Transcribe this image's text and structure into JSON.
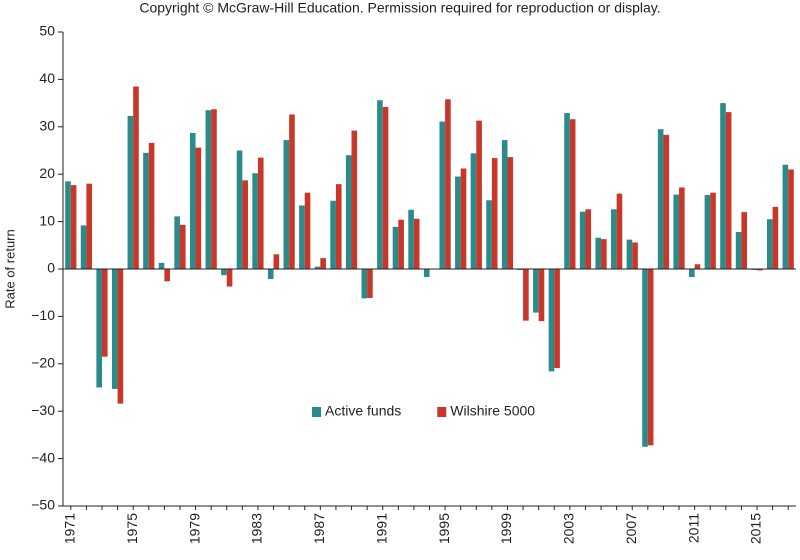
{
  "chart_data": {
    "type": "bar",
    "title": "Copyright © McGraw-Hill Education. Permission required for reproduction or display.",
    "ylabel": "Rate of return",
    "categories": [
      "1971",
      null,
      null,
      null,
      "1975",
      null,
      null,
      null,
      "1979",
      null,
      null,
      null,
      "1983",
      null,
      null,
      null,
      "1987",
      null,
      null,
      null,
      "1991",
      null,
      null,
      null,
      "1995",
      null,
      null,
      null,
      "1999",
      null,
      null,
      null,
      "2003",
      null,
      null,
      null,
      "2007",
      null,
      null,
      null,
      "2011",
      null,
      null,
      null,
      "2015",
      null,
      null
    ],
    "series": [
      {
        "name": "Active funds",
        "color": "#2b8b8a",
        "values": [
          18.5,
          9.2,
          -25,
          -25.3,
          32.3,
          24.5,
          1.3,
          11.1,
          28.7,
          33.5,
          -1.3,
          25,
          20.2,
          -2.1,
          27.2,
          13.4,
          0.5,
          14.4,
          24,
          -6.2,
          35.6,
          8.9,
          12.5,
          -1.7,
          31.1,
          19.5,
          24.4,
          14.5,
          27.2,
          -0.2,
          -9.2,
          -21.6,
          32.9,
          12.1,
          6.6,
          12.6,
          6.2,
          -37.5,
          29.5,
          15.7,
          -1.7,
          15.6,
          35,
          7.8,
          -0.2,
          10.5,
          22
        ]
      },
      {
        "name": "Wilshire 5000",
        "color": "#c8372a",
        "values": [
          17.7,
          18,
          -18.5,
          -28.4,
          38.5,
          26.6,
          -2.6,
          9.3,
          25.6,
          33.7,
          -3.7,
          18.7,
          23.5,
          3.1,
          32.6,
          16.1,
          2.3,
          17.9,
          29.2,
          -6.1,
          34.2,
          10.4,
          10.6,
          -0.1,
          35.8,
          21.2,
          31.3,
          23.4,
          23.6,
          -10.9,
          -11,
          -20.9,
          31.6,
          12.6,
          6.3,
          15.9,
          5.6,
          -37.2,
          28.3,
          17.2,
          1,
          16.1,
          33.1,
          12,
          -0.3,
          13.1,
          21
        ]
      }
    ],
    "ylim": [
      -50,
      50
    ],
    "yticks": [
      {
        "value": -50,
        "label": "−50"
      },
      {
        "value": -40,
        "label": "−40"
      },
      {
        "value": -30,
        "label": "−30"
      },
      {
        "value": -20,
        "label": "−20"
      },
      {
        "value": -10,
        "label": "−10"
      },
      0,
      10,
      20,
      30,
      40,
      50
    ],
    "legend": "inside-bottom-center",
    "grid": false
  }
}
